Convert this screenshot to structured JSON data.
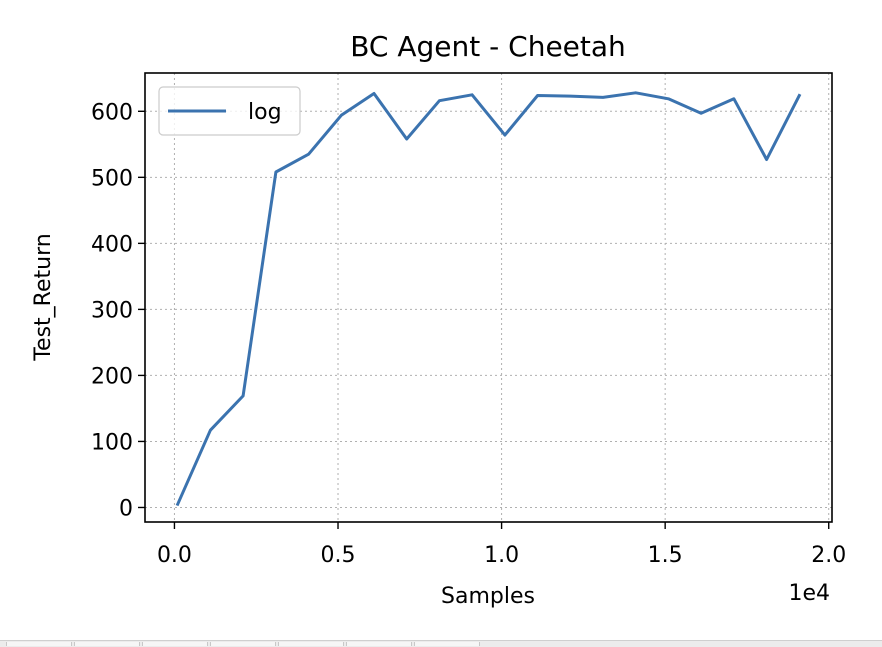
{
  "chart_data": {
    "type": "line",
    "title": "BC Agent - Cheetah",
    "xlabel": "Samples",
    "ylabel": "Test_Return",
    "x_offset_label": "1e4",
    "xlim": [
      -0.09,
      2.01
    ],
    "ylim": [
      -22,
      658
    ],
    "x_ticks": [
      0.0,
      0.5,
      1.0,
      1.5,
      2.0
    ],
    "x_tick_labels": [
      "0.0",
      "0.5",
      "1.0",
      "1.5",
      "2.0"
    ],
    "y_ticks": [
      0,
      100,
      200,
      300,
      400,
      500,
      600
    ],
    "y_tick_labels": [
      "0",
      "100",
      "200",
      "300",
      "400",
      "500",
      "600"
    ],
    "grid": true,
    "legend_position": "top-left",
    "series": [
      {
        "name": "log",
        "color": "#3b73af",
        "x": [
          0.01,
          0.11,
          0.21,
          0.31,
          0.41,
          0.51,
          0.61,
          0.71,
          0.81,
          0.91,
          1.01,
          1.11,
          1.21,
          1.31,
          1.41,
          1.51,
          1.61,
          1.71,
          1.81,
          1.91
        ],
        "y": [
          5,
          117,
          169,
          508,
          535,
          594,
          627,
          558,
          616,
          625,
          564,
          624,
          623,
          621,
          628,
          619,
          597,
          619,
          527,
          624
        ]
      }
    ]
  }
}
